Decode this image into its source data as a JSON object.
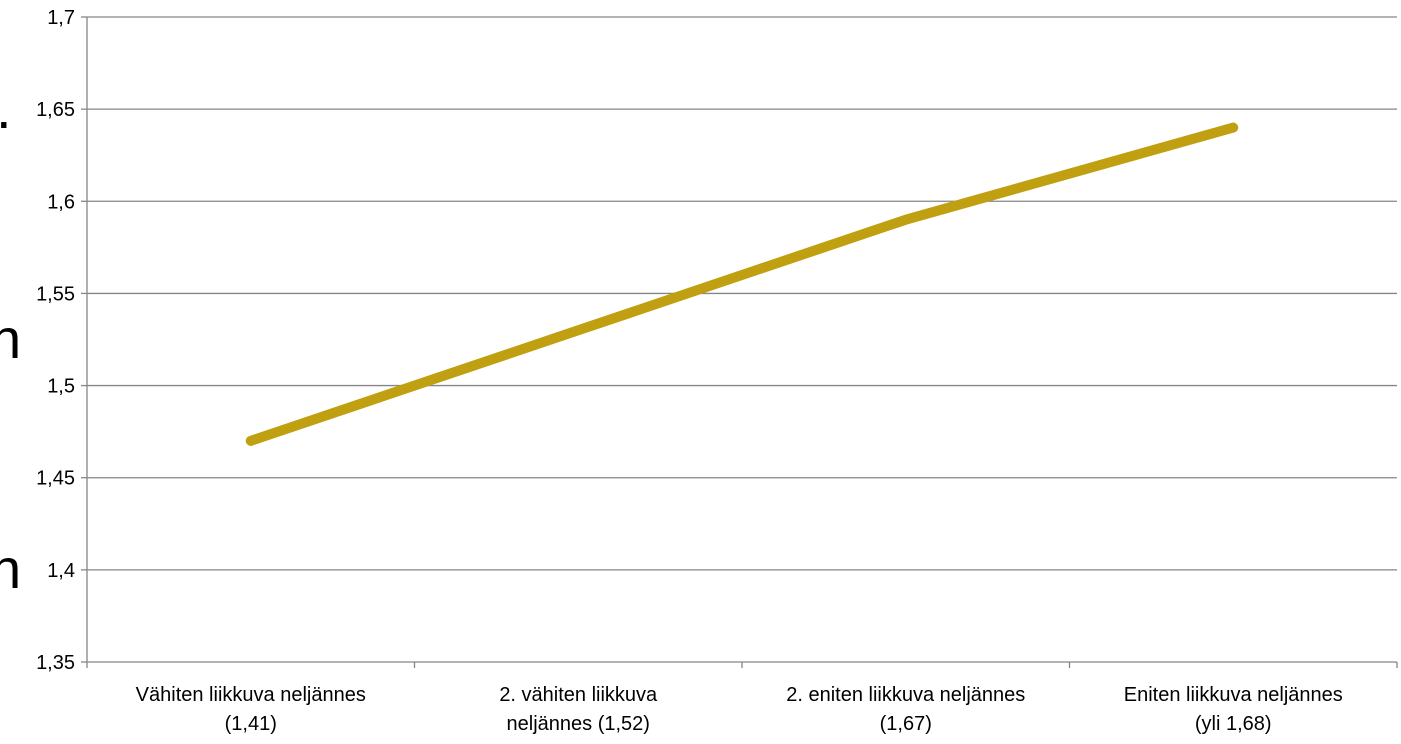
{
  "chart_data": {
    "type": "line",
    "categories": [
      [
        "Vähiten liikkuva neljännes",
        "(1,41)"
      ],
      [
        "2. vähiten liikkuva",
        "neljännes (1,52)"
      ],
      [
        "2. eniten liikkuva neljännes",
        "(1,67)"
      ],
      [
        "Eniten liikkuva neljännes",
        "(yli 1,68)"
      ]
    ],
    "series": [
      {
        "values": [
          1.47,
          1.53,
          1.59,
          1.64
        ],
        "color": "#c0a010"
      }
    ],
    "ylim": [
      1.35,
      1.7
    ],
    "yticks": [
      1.35,
      1.4,
      1.45,
      1.5,
      1.55,
      1.6,
      1.65,
      1.7
    ],
    "ytick_labels": [
      "1,35",
      "1,4",
      "1,45",
      "1,5",
      "1,55",
      "1,6",
      "1,65",
      "1,7"
    ],
    "grid": true,
    "legend": "none",
    "title": "",
    "xlabel": "",
    "ylabel": ""
  },
  "edge_fragments": [
    ".",
    "n",
    "n"
  ]
}
